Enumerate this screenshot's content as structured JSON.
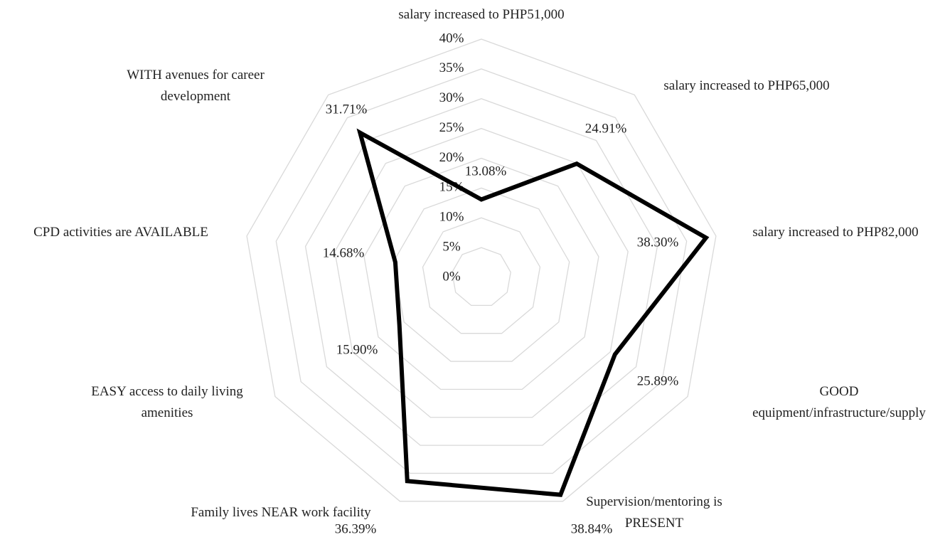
{
  "chart_data": {
    "type": "radar",
    "categories": [
      "salary increased to PHP51,000",
      "salary increased to PHP65,000",
      "salary increased to PHP82,000",
      "GOOD equipment/infrastructure/supply",
      "Supervision/mentoring is PRESENT",
      "Family lives NEAR work facility",
      "EASY access to daily living amenities",
      "CPD activities are AVAILABLE",
      "WITH avenues for career development"
    ],
    "series": [
      {
        "color": "#000000",
        "values": [
          13.08,
          24.91,
          38.3,
          25.89,
          38.84,
          36.39,
          15.9,
          14.68,
          31.71
        ],
        "value_labels": [
          "13.08%",
          "24.91%",
          "38.30%",
          "25.89%",
          "38.84%",
          "36.39%",
          "15.90%",
          "14.68%",
          "31.71%"
        ]
      }
    ],
    "ylim": [
      0,
      40
    ],
    "yticks": [
      {
        "value": 0,
        "label": "0%"
      },
      {
        "value": 5,
        "label": "5%"
      },
      {
        "value": 10,
        "label": "10%"
      },
      {
        "value": 15,
        "label": "15%"
      },
      {
        "value": 20,
        "label": "20%"
      },
      {
        "value": 25,
        "label": "25%"
      },
      {
        "value": 30,
        "label": "30%"
      },
      {
        "value": 35,
        "label": "35%"
      },
      {
        "value": 40,
        "label": "40%"
      }
    ],
    "grid": true
  }
}
